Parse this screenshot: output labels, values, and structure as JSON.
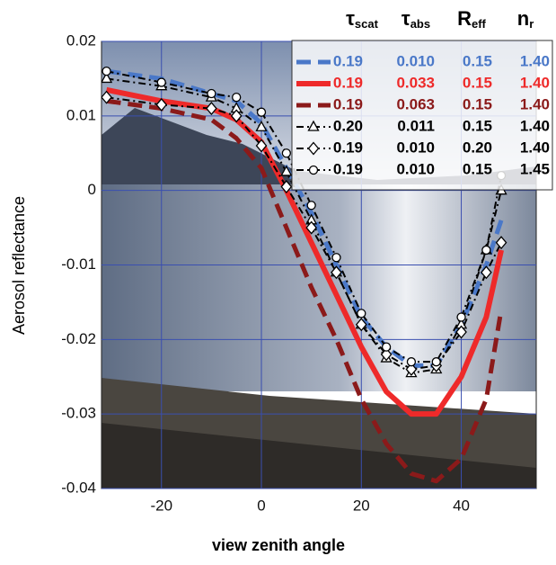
{
  "chart_data": {
    "type": "line",
    "x_label": "view zenith angle",
    "y_label": "Aerosol reflectance",
    "x": [
      -31,
      -20,
      -10,
      -5,
      0,
      5,
      10,
      15,
      20,
      25,
      30,
      35,
      40,
      45,
      48
    ],
    "xlim": [
      -32,
      55
    ],
    "ylim": [
      -0.04,
      0.02
    ],
    "xticks": [
      -20,
      0,
      20,
      40
    ],
    "yticks": [
      0.02,
      0.01,
      0,
      -0.01,
      -0.02,
      -0.03,
      -0.04
    ],
    "grid": true,
    "grid_color": "#3a4fb0",
    "legend_columns": [
      {
        "symbol": "τ",
        "sub": "scat"
      },
      {
        "symbol": "τ",
        "sub": "abs"
      },
      {
        "symbol": "R",
        "sub": "eff"
      },
      {
        "symbol": "n",
        "sub": "r"
      }
    ],
    "series": [
      {
        "params": [
          "0.19",
          "0.010",
          "0.15",
          "1.40"
        ],
        "color": "#4a78c8",
        "style": "dashed",
        "width": 5,
        "marker": null,
        "values": [
          0.016,
          0.015,
          0.013,
          0.012,
          0.009,
          0.003,
          -0.003,
          -0.01,
          -0.017,
          -0.021,
          -0.0235,
          -0.0235,
          -0.018,
          -0.01,
          -0.004
        ]
      },
      {
        "params": [
          "0.19",
          "0.033",
          "0.15",
          "1.40"
        ],
        "color": "#ee2a2a",
        "style": "solid",
        "width": 6,
        "marker": null,
        "values": [
          0.0135,
          0.012,
          0.011,
          0.0095,
          0.0065,
          0.0,
          -0.007,
          -0.014,
          -0.021,
          -0.027,
          -0.03,
          -0.03,
          -0.025,
          -0.017,
          -0.008
        ]
      },
      {
        "params": [
          "0.19",
          "0.063",
          "0.15",
          "1.40"
        ],
        "color": "#8b1a1a",
        "style": "dashed",
        "width": 5,
        "marker": null,
        "values": [
          0.012,
          0.011,
          0.0095,
          0.007,
          0.003,
          -0.005,
          -0.013,
          -0.02,
          -0.028,
          -0.034,
          -0.038,
          -0.039,
          -0.036,
          -0.028,
          -0.016
        ]
      },
      {
        "params": [
          "0.20",
          "0.011",
          "0.15",
          "1.40"
        ],
        "color": "#000000",
        "style": "dashdot",
        "width": 2,
        "marker": "triangle",
        "values": [
          0.015,
          0.014,
          0.0125,
          0.011,
          0.0085,
          0.0025,
          -0.004,
          -0.011,
          -0.018,
          -0.0225,
          -0.0245,
          -0.024,
          -0.018,
          -0.008,
          0.0
        ]
      },
      {
        "params": [
          "0.19",
          "0.010",
          "0.20",
          "1.40"
        ],
        "color": "#000000",
        "style": "dashdot",
        "width": 2,
        "marker": "diamond",
        "values": [
          0.0125,
          0.0115,
          0.011,
          0.01,
          0.006,
          0.0005,
          -0.005,
          -0.011,
          -0.018,
          -0.022,
          -0.024,
          -0.0235,
          -0.019,
          -0.011,
          -0.007
        ]
      },
      {
        "params": [
          "0.19",
          "0.010",
          "0.15",
          "1.45"
        ],
        "color": "#000000",
        "style": "dashdot",
        "width": 2,
        "marker": "circle",
        "values": [
          0.016,
          0.0145,
          0.013,
          0.0125,
          0.0105,
          0.005,
          -0.002,
          -0.009,
          -0.0165,
          -0.021,
          -0.023,
          -0.023,
          -0.017,
          -0.008,
          0.002
        ]
      }
    ]
  }
}
